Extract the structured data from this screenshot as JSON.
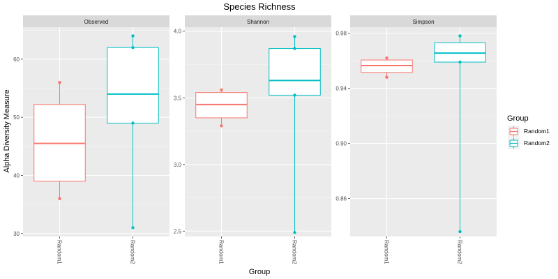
{
  "chart_data": {
    "type": "boxplot",
    "title": "Species Richness",
    "xlabel": "Group",
    "ylabel": "Alpha Diversity Measure",
    "categories": [
      "Random1",
      "Random2"
    ],
    "legend": {
      "title": "Group",
      "position": "right",
      "entries": [
        "Random1",
        "Random2"
      ]
    },
    "colors": {
      "Random1": "#F8766D",
      "Random2": "#00BFC4",
      "panel_bg": "#EBEBEB",
      "strip_bg": "#D9D9D9"
    },
    "grid": true,
    "panels": [
      {
        "label": "Observed",
        "ylim": [
          29.5,
          65.5
        ],
        "yticks": [
          30,
          40,
          50,
          60
        ],
        "yticklabels": [
          "30",
          "40",
          "50",
          "60"
        ],
        "boxes": [
          {
            "group": "Random1",
            "min": 36,
            "q1": 39,
            "median": 45.5,
            "q3": 52.2,
            "max": 56,
            "points": [
              56,
              36
            ]
          },
          {
            "group": "Random2",
            "min": 31,
            "q1": 49,
            "median": 54,
            "q3": 62,
            "max": 64,
            "points": [
              64,
              62,
              49,
              31
            ]
          }
        ]
      },
      {
        "label": "Shannon",
        "ylim": [
          2.46,
          4.03
        ],
        "yticks": [
          2.5,
          3.0,
          3.5,
          4.0
        ],
        "yticklabels": [
          "2.5",
          "3.0",
          "3.5",
          "4.0"
        ],
        "boxes": [
          {
            "group": "Random1",
            "min": 3.29,
            "q1": 3.35,
            "median": 3.45,
            "q3": 3.54,
            "max": 3.56,
            "points": [
              3.56,
              3.29
            ]
          },
          {
            "group": "Random2",
            "min": 2.49,
            "q1": 3.52,
            "median": 3.63,
            "q3": 3.87,
            "max": 3.96,
            "points": [
              3.96,
              3.87,
              3.52,
              2.49
            ]
          }
        ]
      },
      {
        "label": "Simpson",
        "ylim": [
          0.8325,
          0.9843
        ],
        "yticks": [
          0.86,
          0.9,
          0.94,
          0.98
        ],
        "yticklabels": [
          "0.86",
          "0.90",
          "0.94",
          "0.98"
        ],
        "boxes": [
          {
            "group": "Random1",
            "min": 0.948,
            "q1": 0.9515,
            "median": 0.9565,
            "q3": 0.9605,
            "max": 0.962,
            "points": [
              0.962,
              0.948
            ]
          },
          {
            "group": "Random2",
            "min": 0.836,
            "q1": 0.959,
            "median": 0.9655,
            "q3": 0.973,
            "max": 0.978,
            "points": [
              0.978,
              0.959,
              0.836
            ]
          }
        ]
      }
    ]
  }
}
